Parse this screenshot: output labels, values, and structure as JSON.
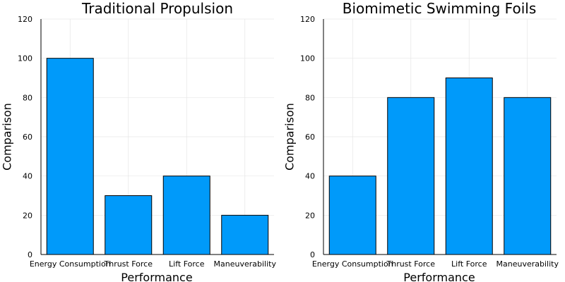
{
  "chart_data": [
    {
      "type": "bar",
      "title": "Traditional Propulsion",
      "xlabel": "Performance",
      "ylabel": "Comparison",
      "categories": [
        "Energy Consumption",
        "Thrust Force",
        "Lift Force",
        "Maneuverability"
      ],
      "values": [
        100,
        30,
        40,
        20
      ],
      "ylim": [
        0,
        120
      ],
      "yticks": [
        0,
        20,
        40,
        60,
        80,
        100,
        120
      ],
      "grid": true,
      "legend": "none"
    },
    {
      "type": "bar",
      "title": "Biomimetic Swimming Foils",
      "xlabel": "Performance",
      "ylabel": "Comparison",
      "categories": [
        "Energy Consumption",
        "Thrust Force",
        "Lift Force",
        "Maneuverability"
      ],
      "values": [
        40,
        80,
        90,
        80
      ],
      "ylim": [
        0,
        120
      ],
      "yticks": [
        0,
        20,
        40,
        60,
        80,
        100,
        120
      ],
      "grid": true,
      "legend": "none"
    }
  ],
  "colors": {
    "bar": "#009AFA",
    "bar_stroke": "#000000"
  }
}
